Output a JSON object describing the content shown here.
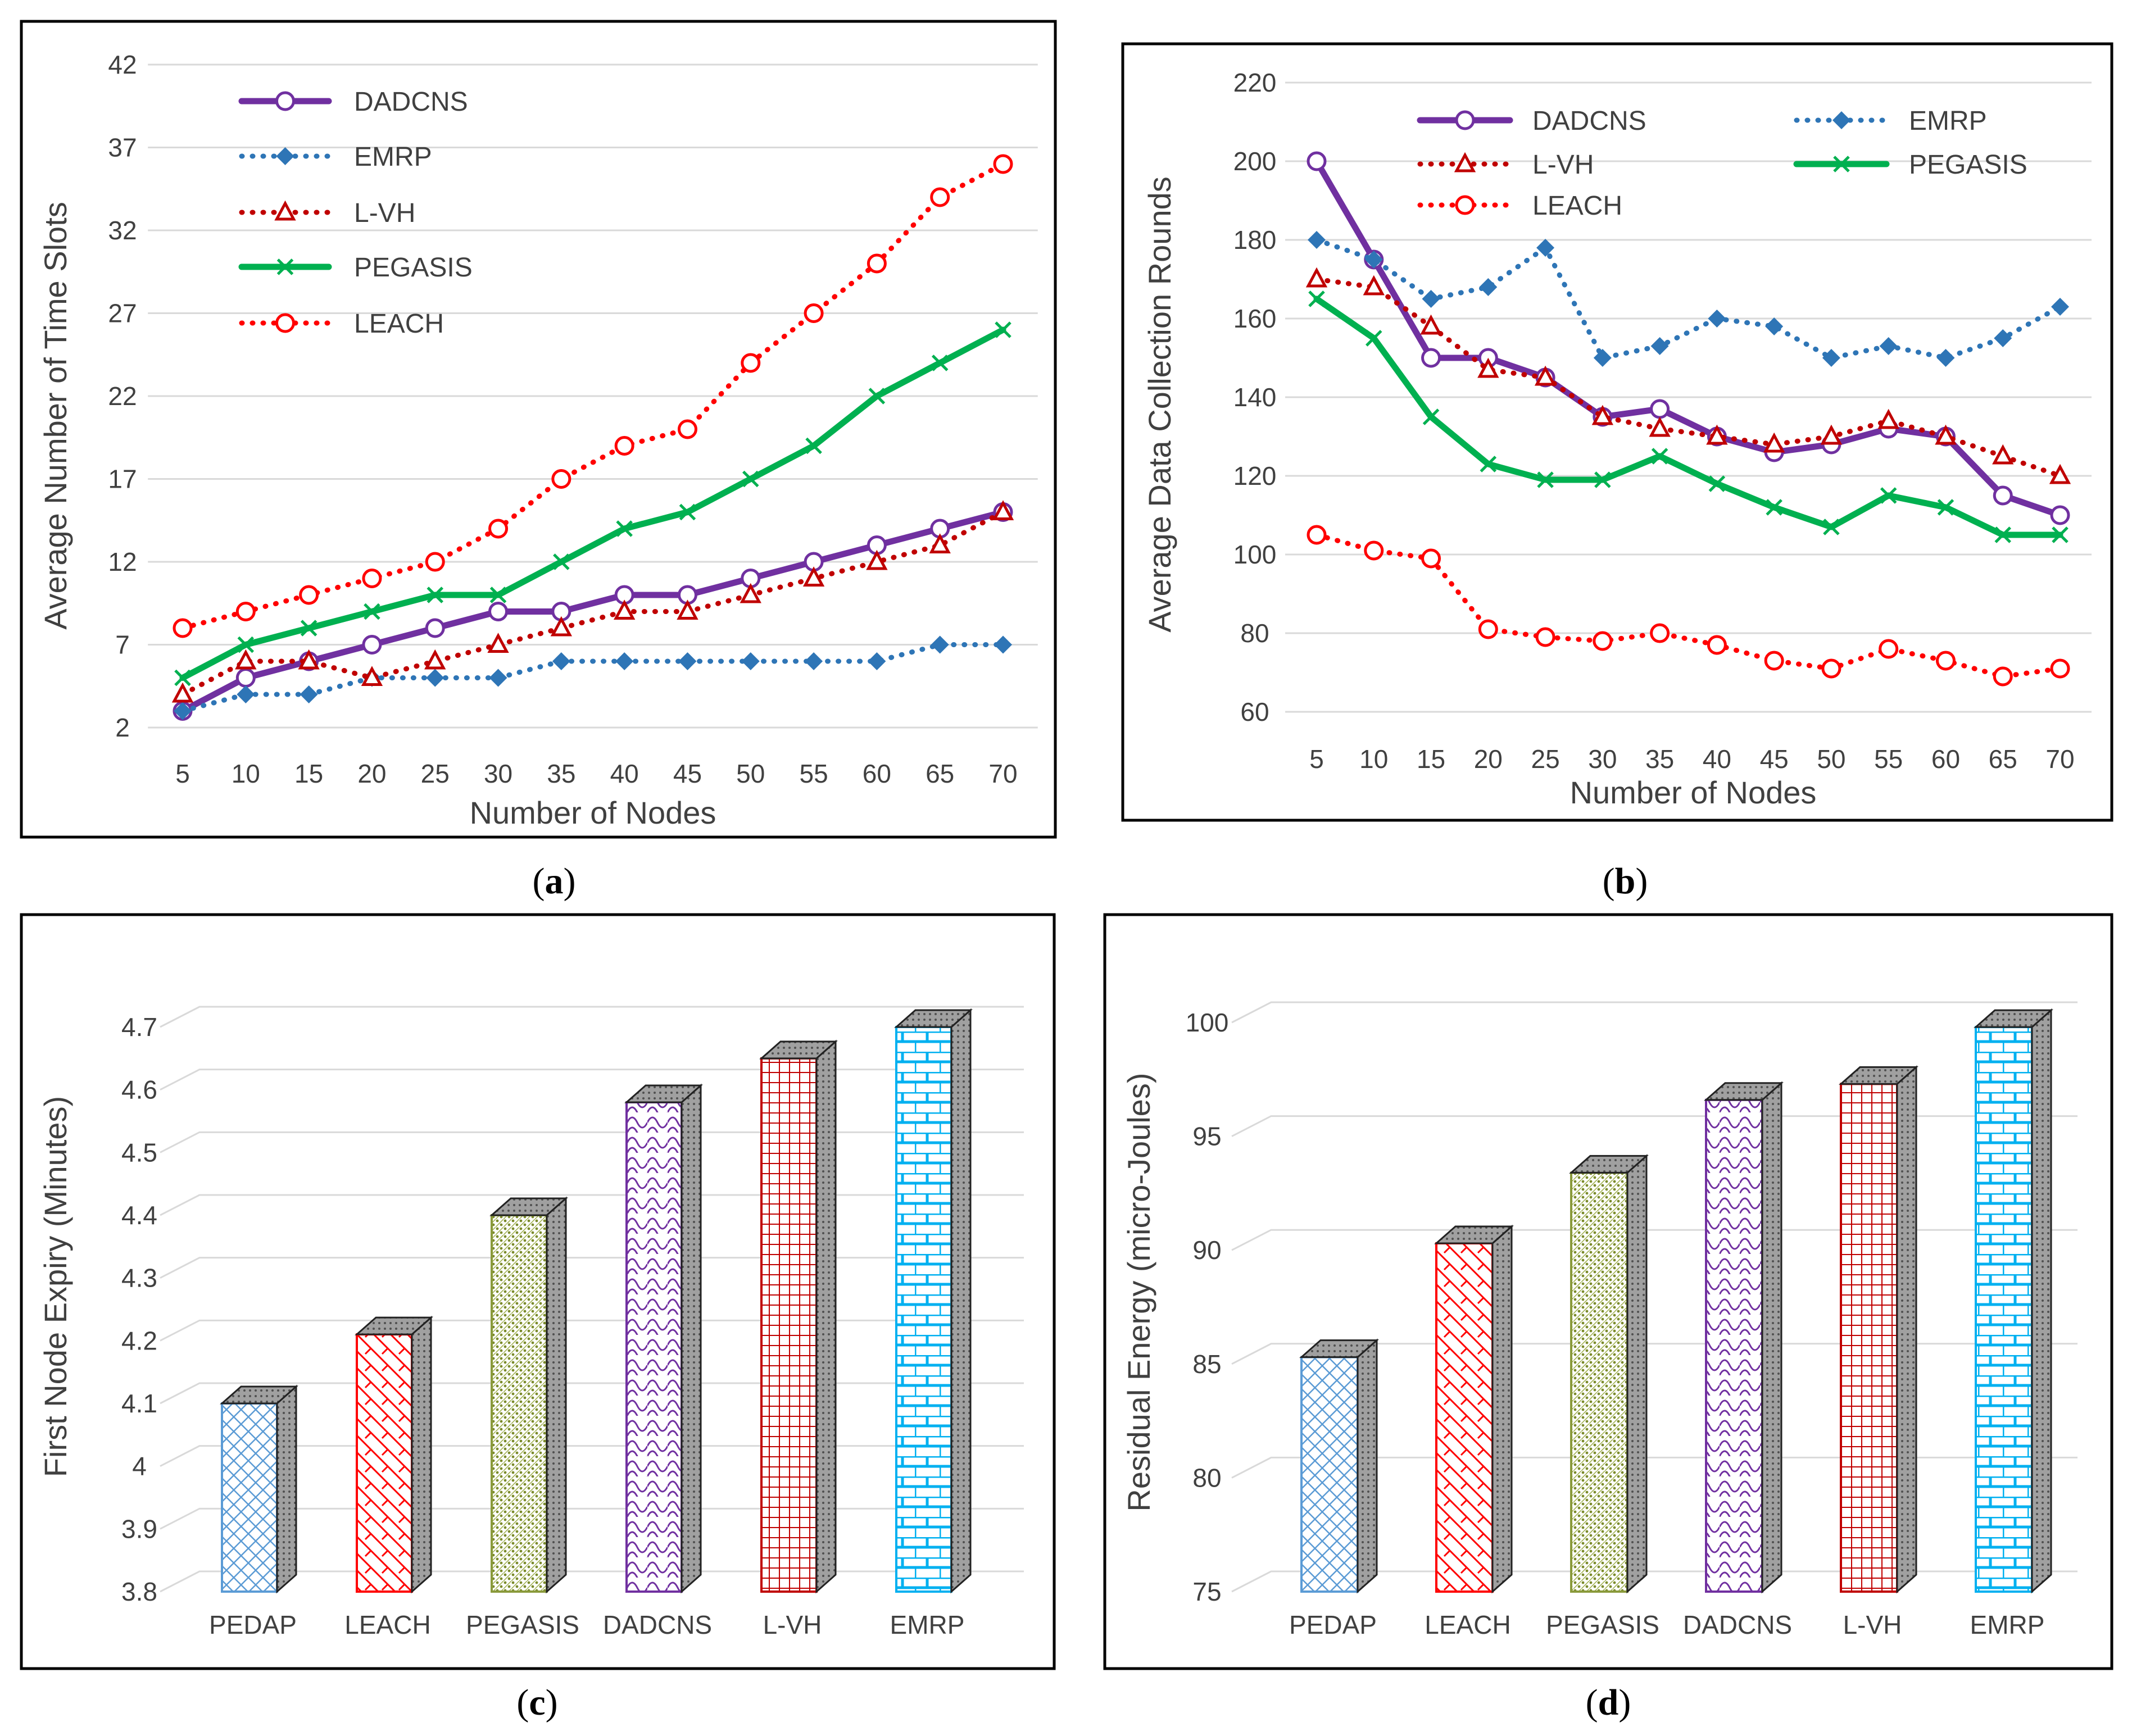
{
  "colors": {
    "DADCNS": "#7030A0",
    "EMRP": "#2E75B6",
    "L-VH": "#C00000",
    "PEGASIS": "#00B050",
    "LEACH": "#FF0000",
    "PEDAP": "#5B9BD5",
    "PEGASIS_bar": "#8A9A3B",
    "EMRP_bar": "#00B0F0",
    "grid": "#d9d9d9",
    "text": "#404040"
  },
  "chart_data": [
    {
      "id": "a",
      "type": "line",
      "caption": "a",
      "xlabel": "Number of Nodes",
      "ylabel": "Average Number of Time Slots",
      "x": [
        5,
        10,
        15,
        20,
        25,
        30,
        35,
        40,
        45,
        50,
        55,
        60,
        65,
        70
      ],
      "ylim": [
        2,
        42
      ],
      "yticks": [
        2,
        7,
        12,
        17,
        22,
        27,
        32,
        37,
        42
      ],
      "grid": true,
      "legend_position": "top-left",
      "series": [
        {
          "name": "DADCNS",
          "style": "solid",
          "marker": "circle",
          "values": [
            3,
            5,
            6,
            7,
            8,
            9,
            9,
            10,
            10,
            11,
            12,
            13,
            14,
            15
          ]
        },
        {
          "name": "EMRP",
          "style": "dotted",
          "marker": "diamond",
          "values": [
            3,
            4,
            4,
            5,
            5,
            5,
            6,
            6,
            6,
            6,
            6,
            6,
            7,
            7
          ]
        },
        {
          "name": "L-VH",
          "style": "dotted",
          "marker": "triangle",
          "values": [
            4,
            6,
            6,
            5,
            6,
            7,
            8,
            9,
            9,
            10,
            11,
            12,
            13,
            15
          ]
        },
        {
          "name": "PEGASIS",
          "style": "solid",
          "marker": "x",
          "values": [
            5,
            7,
            8,
            9,
            10,
            10,
            12,
            14,
            15,
            17,
            19,
            22,
            24,
            26
          ]
        },
        {
          "name": "LEACH",
          "style": "dotted",
          "marker": "circle",
          "values": [
            8,
            9,
            10,
            11,
            12,
            14,
            17,
            19,
            20,
            24,
            27,
            30,
            34,
            36
          ]
        }
      ]
    },
    {
      "id": "b",
      "type": "line",
      "caption": "b",
      "xlabel": "Number of Nodes",
      "ylabel": "Average Data Collection Rounds",
      "x": [
        5,
        10,
        15,
        20,
        25,
        30,
        35,
        40,
        45,
        50,
        55,
        60,
        65,
        70
      ],
      "ylim": [
        60,
        220
      ],
      "yticks": [
        60,
        80,
        100,
        120,
        140,
        160,
        180,
        200,
        220
      ],
      "grid": true,
      "legend_position": "top",
      "series": [
        {
          "name": "DADCNS",
          "style": "solid",
          "marker": "circle",
          "values": [
            200,
            175,
            150,
            150,
            145,
            135,
            137,
            130,
            126,
            128,
            132,
            130,
            115,
            110
          ]
        },
        {
          "name": "EMRP",
          "style": "dotted",
          "marker": "diamond",
          "values": [
            180,
            175,
            165,
            168,
            178,
            150,
            153,
            160,
            158,
            150,
            153,
            150,
            155,
            163
          ]
        },
        {
          "name": "L-VH",
          "style": "dotted",
          "marker": "triangle",
          "values": [
            170,
            168,
            158,
            147,
            145,
            135,
            132,
            130,
            128,
            130,
            134,
            130,
            125,
            120
          ]
        },
        {
          "name": "PEGASIS",
          "style": "solid",
          "marker": "x",
          "values": [
            165,
            155,
            135,
            123,
            119,
            119,
            125,
            118,
            112,
            107,
            115,
            112,
            105,
            105
          ]
        },
        {
          "name": "LEACH",
          "style": "dotted",
          "marker": "circle",
          "values": [
            105,
            101,
            99,
            81,
            79,
            78,
            80,
            77,
            73,
            71,
            76,
            73,
            69,
            71
          ]
        }
      ]
    },
    {
      "id": "c",
      "type": "bar",
      "caption": "c",
      "xlabel": "",
      "ylabel": "First Node Expiry (Minutes)",
      "categories": [
        "PEDAP",
        "LEACH",
        "PEGASIS",
        "DADCNS",
        "L-VH",
        "EMRP"
      ],
      "values": [
        4.1,
        4.21,
        4.4,
        4.58,
        4.65,
        4.7
      ],
      "ylim": [
        3.8,
        4.7
      ],
      "yticks": [
        "3.8",
        "3.9",
        "4",
        "4.1",
        "4.2",
        "4.3",
        "4.4",
        "4.5",
        "4.6",
        "4.7"
      ],
      "grid": true
    },
    {
      "id": "d",
      "type": "bar",
      "caption": "d",
      "xlabel": "",
      "ylabel": "Residual Energy (micro-Joules)",
      "categories": [
        "PEDAP",
        "LEACH",
        "PEGASIS",
        "DADCNS",
        "L-VH",
        "EMRP"
      ],
      "values": [
        85.3,
        90.3,
        93.4,
        96.6,
        97.3,
        99.8
      ],
      "ylim": [
        75,
        100
      ],
      "yticks": [
        "75",
        "80",
        "85",
        "90",
        "95",
        "100"
      ],
      "grid": true
    }
  ]
}
